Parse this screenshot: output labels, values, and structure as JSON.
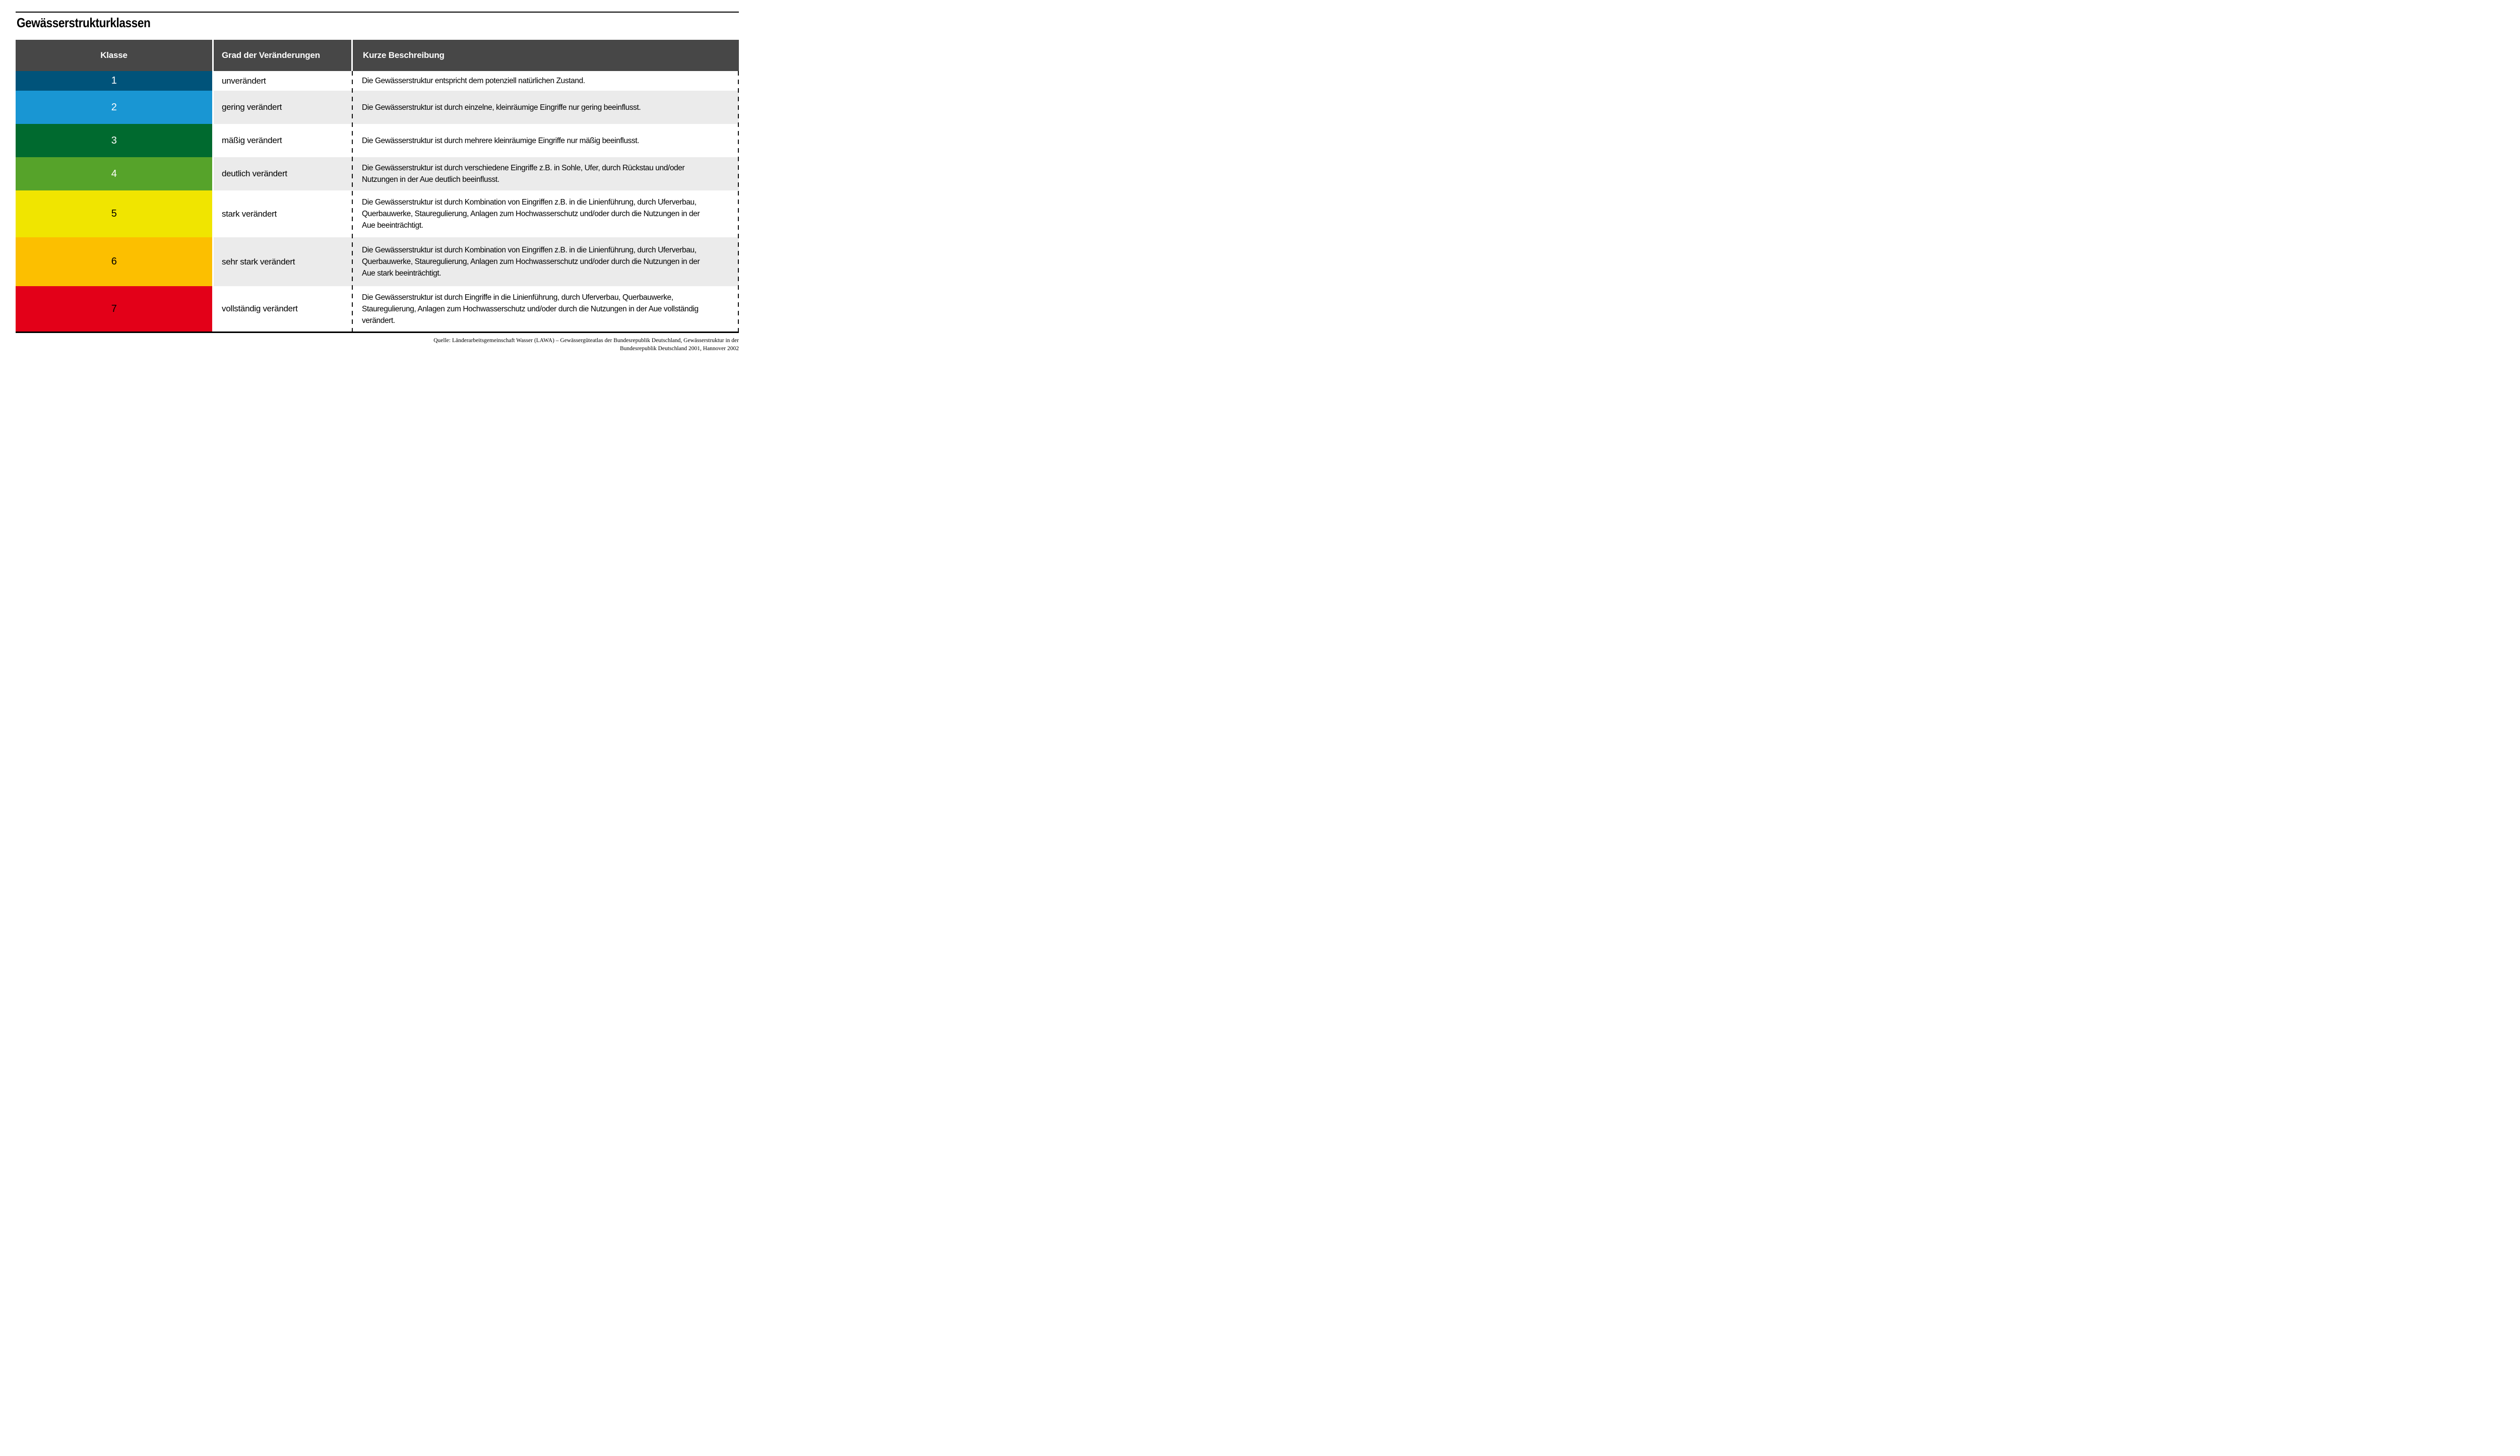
{
  "page": {
    "title": "Gewässerstrukturklassen"
  },
  "colors": {
    "rule_bar": "#000000",
    "header_bg": "#474747",
    "row_bg": "#ffffff",
    "row_alt_bg": "#ebebeb",
    "dash_line": "#111111"
  },
  "table": {
    "headers": [
      "Klasse",
      "Grad der Veränderungen",
      "Kurze Beschreibung"
    ],
    "rows": [
      {
        "klasse": "1",
        "color": "#00537a",
        "number_color": "#ffffff",
        "grad": "unverändert",
        "beschreibung": "Die Gewässerstruktur entspricht dem potenziell natürlichen Zustand."
      },
      {
        "klasse": "2",
        "color": "#1996d3",
        "number_color": "#ffffff",
        "grad": "gering verändert",
        "beschreibung": "Die Gewässerstruktur ist durch einzelne, kleinräumige Eingriffe nur gering beeinflusst."
      },
      {
        "klasse": "3",
        "color": "#006a2f",
        "number_color": "#ffffff",
        "grad": "mäßig verändert",
        "beschreibung": "Die Gewässerstruktur ist durch mehrere kleinräumige Eingriffe nur mäßig beeinflusst."
      },
      {
        "klasse": "4",
        "color": "#56a32a",
        "number_color": "#ffffff",
        "grad": "deutlich verändert",
        "beschreibung": "Die Gewässerstruktur ist durch verschiedene Eingriffe z.B. in Sohle, Ufer, durch Rückstau und/oder Nutzungen in der Aue deutlich beeinflusst."
      },
      {
        "klasse": "5",
        "color": "#f0e500",
        "number_color": "#000000",
        "grad": "stark verändert",
        "beschreibung": "Die Gewässerstruktur ist durch Kombination von Eingriffen z.B. in die Linienführung, durch Uferverbau, Querbauwerke, Stauregulierung, Anlagen zum Hochwasserschutz und/oder durch die Nutzungen in der Aue beeinträchtigt."
      },
      {
        "klasse": "6",
        "color": "#fcbf00",
        "number_color": "#000000",
        "grad": "sehr stark verändert",
        "beschreibung": "Die Gewässerstruktur ist durch Kombination von Eingriffen z.B. in die Linienführung, durch Uferverbau, Querbauwerke, Stauregulierung, Anlagen zum Hochwasserschutz und/oder durch die Nutzungen in der Aue stark beeinträchtigt."
      },
      {
        "klasse": "7",
        "color": "#e30018",
        "number_color": "#000000",
        "grad": "vollständig verändert",
        "beschreibung": "Die Gewässerstruktur ist durch Eingriffe in die Linienführung, durch Uferverbau, Querbauwerke, Stauregulierung, Anlagen zum Hochwasserschutz und/oder durch die Nutzungen in der Aue vollständig verändert."
      }
    ]
  },
  "footer": {
    "lines": [
      "Quelle: Länderarbeitsgemeinschaft Wasser (LAWA) – Gewässergüteatlas der Bundesrepublik Deutschland, Gewässerstruktur in der",
      "Bundesrepublik Deutschland 2001, Hannover 2002"
    ]
  }
}
